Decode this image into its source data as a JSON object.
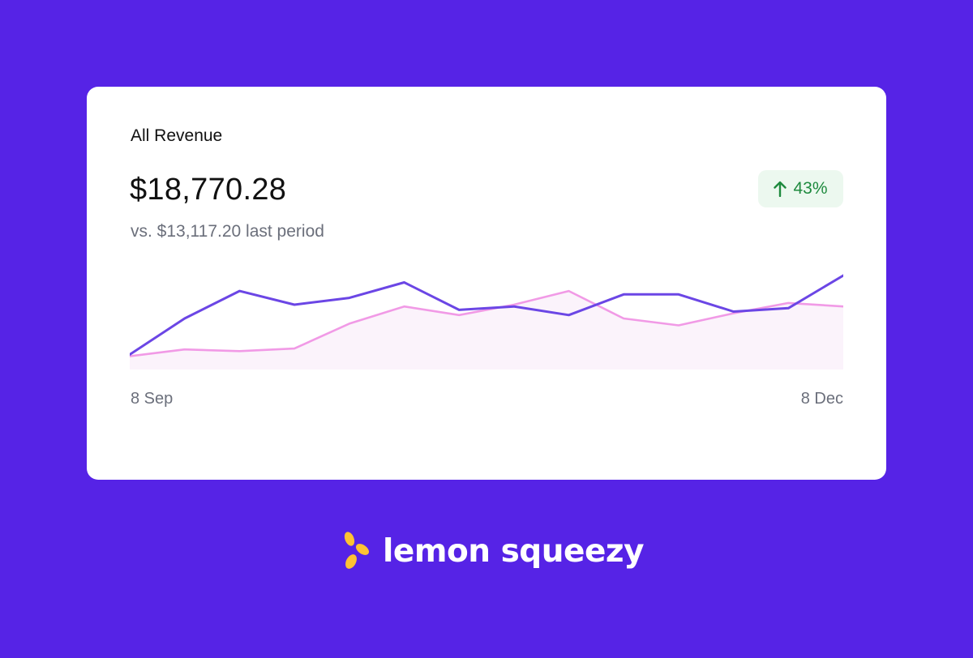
{
  "card": {
    "title": "All Revenue",
    "amount": "$18,770.28",
    "comparison": "vs. $13,117.20 last period",
    "badge": {
      "icon": "arrow-up-icon",
      "value": "43%",
      "color": "#1e8a3e",
      "background": "#ecf8ef"
    }
  },
  "chart_data": {
    "type": "line",
    "x_start_label": "8 Sep",
    "x_end_label": "8 Dec",
    "ylim": [
      0,
      100
    ],
    "grid": false,
    "legend": "none",
    "series": [
      {
        "color": "#6b46e5",
        "values": [
          8,
          50,
          82,
          66,
          74,
          92,
          60,
          64,
          54,
          78,
          78,
          58,
          62,
          100
        ]
      },
      {
        "color": "#f19ae6",
        "values": [
          6,
          14,
          12,
          15,
          44,
          64,
          54,
          66,
          82,
          50,
          42,
          56,
          68,
          64
        ],
        "fill": "#fbf3fb"
      }
    ]
  },
  "brand": {
    "name": "lemon squeezy",
    "icon": "lemon-squeezy-logo-icon",
    "logo_color": "#ffc233"
  }
}
